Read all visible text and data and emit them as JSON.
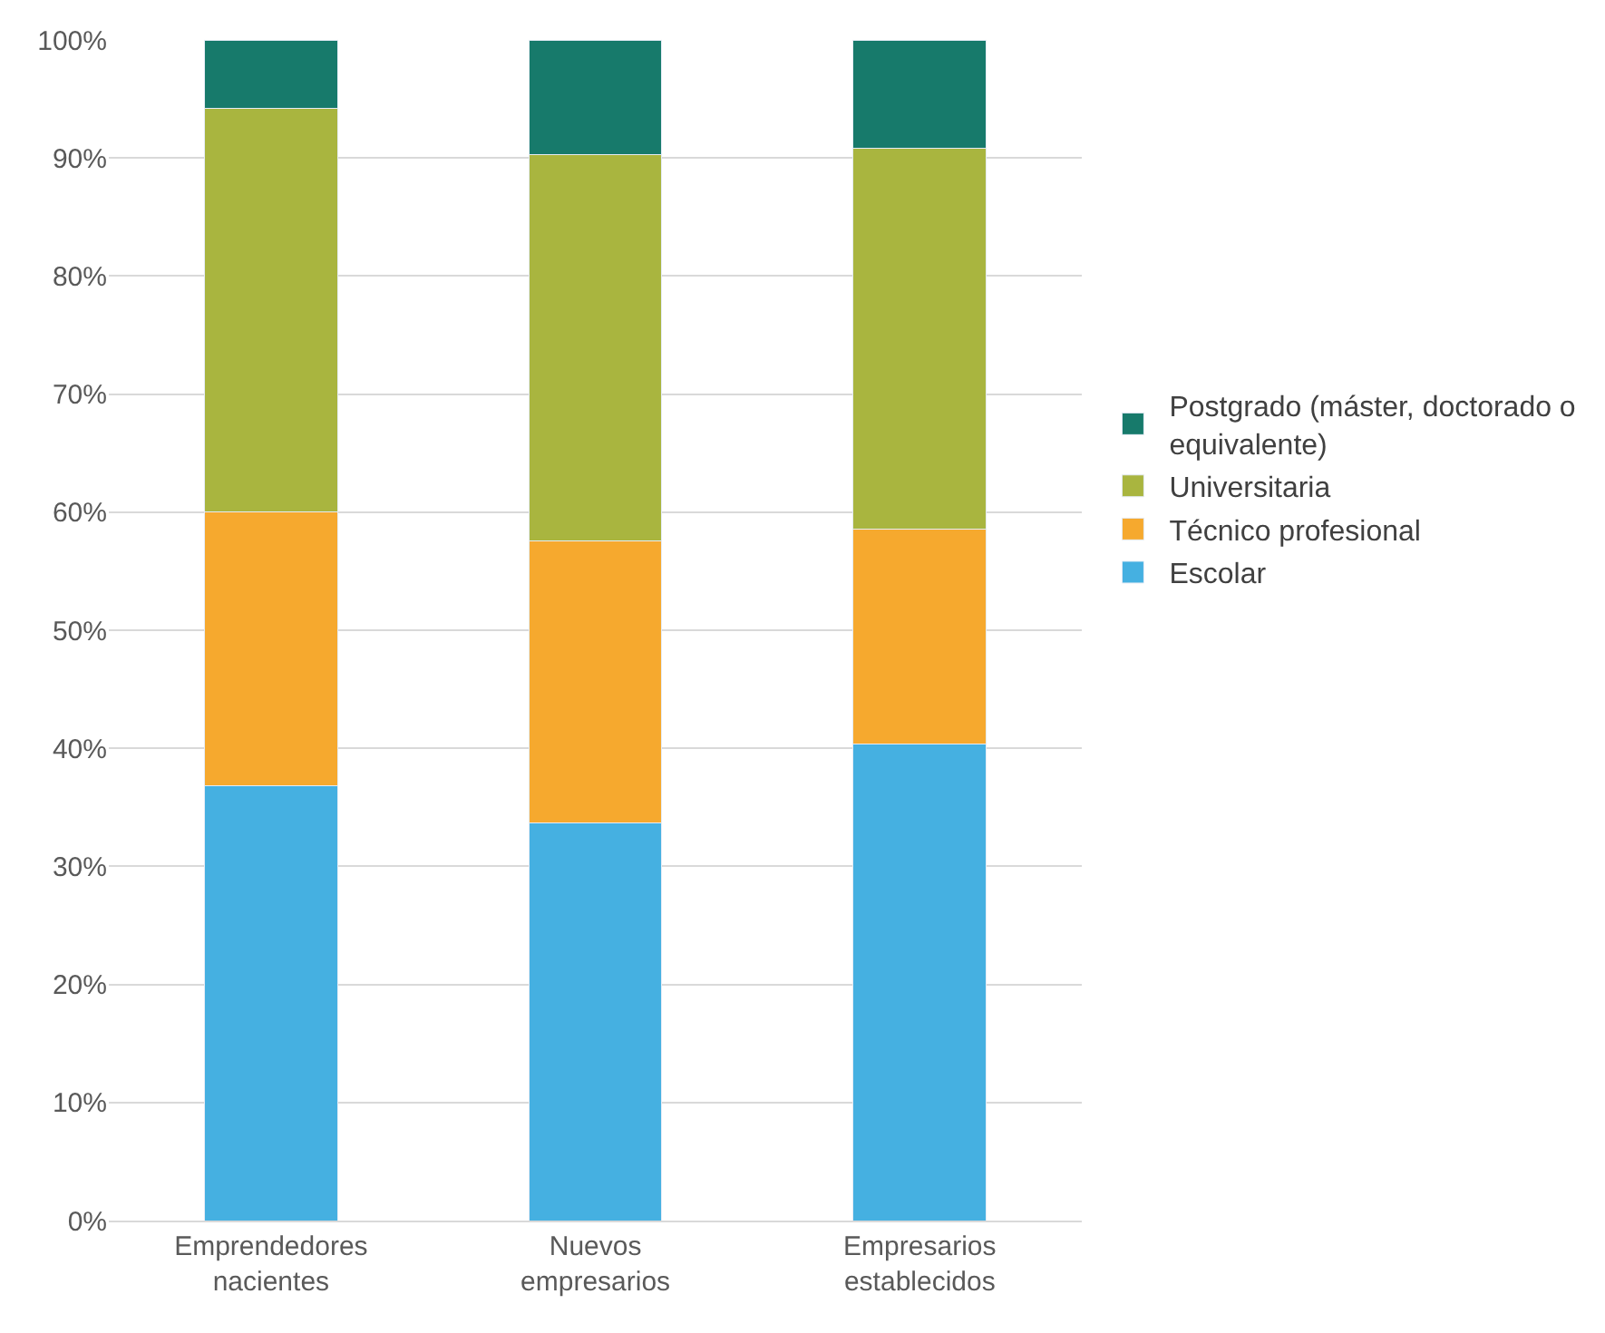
{
  "chart_data": {
    "type": "bar",
    "stacked": true,
    "categories": [
      "Emprendedores nacientes",
      "Nuevos empresarios",
      "Empresarios establecidos"
    ],
    "series": [
      {
        "name": "Escolar",
        "color": "#45b0e1",
        "values": [
          36.8,
          33.7,
          40.4
        ]
      },
      {
        "name": "Técnico profesional",
        "color": "#f6a92e",
        "values": [
          23.2,
          23.9,
          18.2
        ]
      },
      {
        "name": "Universitaria",
        "color": "#a9b53f",
        "values": [
          34.2,
          32.7,
          32.2
        ]
      },
      {
        "name": "Postgrado (máster, doctorado o equivalente)",
        "color": "#177a6b",
        "values": [
          5.8,
          9.7,
          9.2
        ]
      }
    ],
    "ylim": [
      0,
      100
    ],
    "yticks": [
      {
        "value": 0,
        "label": "0%"
      },
      {
        "value": 10,
        "label": "10%"
      },
      {
        "value": 20,
        "label": "20%"
      },
      {
        "value": 30,
        "label": "30%"
      },
      {
        "value": 40,
        "label": "40%"
      },
      {
        "value": 50,
        "label": "50%"
      },
      {
        "value": 60,
        "label": "60%"
      },
      {
        "value": 70,
        "label": "70%"
      },
      {
        "value": 80,
        "label": "80%"
      },
      {
        "value": 90,
        "label": "90%"
      },
      {
        "value": 100,
        "label": "100%"
      }
    ],
    "grid": "y",
    "legend": "right"
  }
}
